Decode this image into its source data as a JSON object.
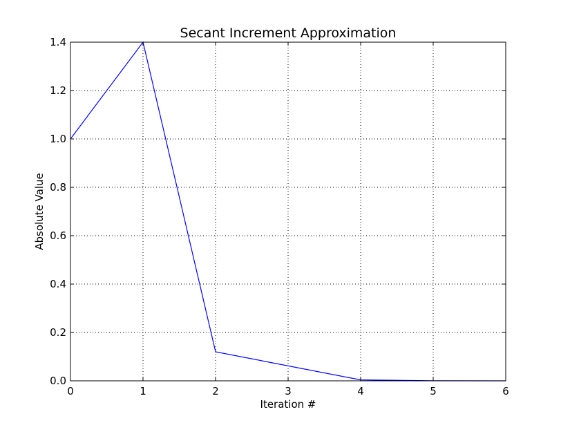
{
  "chart_data": {
    "type": "line",
    "title": "Secant Increment Approximation",
    "xlabel": "Iteration #",
    "ylabel": "Absolute Value",
    "xlim": [
      0,
      6
    ],
    "ylim": [
      0,
      1.4
    ],
    "xticks": [
      "0",
      "1",
      "2",
      "3",
      "4",
      "5",
      "6"
    ],
    "yticks": [
      "0.0",
      "0.2",
      "0.4",
      "0.6",
      "0.8",
      "1.0",
      "1.2",
      "1.4"
    ],
    "grid": true,
    "series_color": "#0000ff",
    "series": [
      {
        "x": [
          0,
          1,
          2,
          4,
          5,
          6
        ],
        "y": [
          1.0,
          1.4,
          0.12,
          0.004,
          0.0005,
          0.0
        ]
      }
    ]
  }
}
